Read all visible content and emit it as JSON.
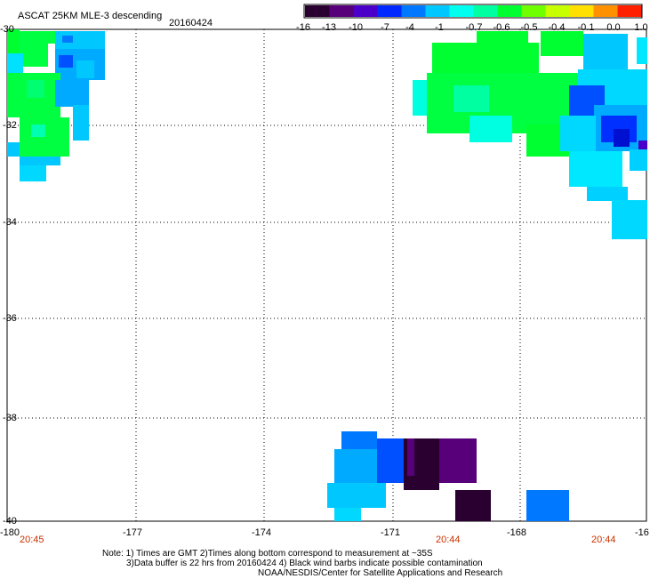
{
  "header": {
    "title": "ASCAT 25KM MLE-3 descending",
    "date": "20160424"
  },
  "colorbar": {
    "labels": [
      "-16",
      "-13",
      "-10",
      "-7",
      "-4",
      "-1",
      "-0.7",
      "-0.6",
      "-0.5",
      "-0.4",
      "-0.1",
      "0.0",
      "1.0"
    ],
    "colors": [
      "#2a0030",
      "#58007a",
      "#4a00c8",
      "#0028ff",
      "#0078ff",
      "#00c8ff",
      "#00ffee",
      "#00ffa0",
      "#00ff30",
      "#70ff00",
      "#c8ff00",
      "#ffe000",
      "#ff9000",
      "#ff2000"
    ]
  },
  "axes": {
    "x_ticks": [
      "-180",
      "-177",
      "-174",
      "-171",
      "-168",
      "-16"
    ],
    "y_ticks": [
      "-30",
      "-32",
      "-34",
      "-36",
      "-38",
      "-40"
    ]
  },
  "times": [
    "20:45",
    "20:44",
    "20:44"
  ],
  "notes": {
    "line1": "Note: 1) Times are GMT 2)Times along bottom correspond to measurement at ~35S",
    "line2": "3)Data buffer is 22 hrs from 20160424 4) Black wind barbs indicate possible contamination",
    "line3": "NOAA/NESDIS/Center for Satellite Applications and Research"
  }
}
